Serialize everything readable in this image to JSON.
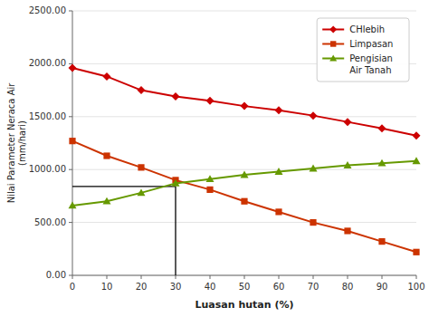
{
  "chart_data": {
    "type": "line",
    "xlabel": "Luasan hutan (%)",
    "ylabel": "Nilai Parameter Neraca Air\n(mm/hari)",
    "x": [
      0,
      10,
      20,
      30,
      40,
      50,
      60,
      70,
      80,
      90,
      100
    ],
    "series": [
      {
        "name": "CHlebih",
        "color": "#cc0000",
        "marker": "diamond",
        "values": [
          1960,
          1880,
          1750,
          1690,
          1650,
          1600,
          1560,
          1510,
          1450,
          1390,
          1320
        ]
      },
      {
        "name": "Limpasan",
        "color": "#cc3300",
        "marker": "square",
        "values": [
          1270,
          1130,
          1020,
          900,
          810,
          700,
          600,
          500,
          420,
          320,
          220
        ]
      },
      {
        "name": "Pengisian\nAir Tanah",
        "color": "#669900",
        "marker": "triangle",
        "values": [
          660,
          700,
          780,
          870,
          910,
          950,
          980,
          1010,
          1040,
          1060,
          1080
        ]
      }
    ],
    "xlim": [
      0,
      100
    ],
    "ylim": [
      0,
      2500
    ],
    "xticks": [
      0,
      10,
      20,
      30,
      40,
      50,
      60,
      70,
      80,
      90,
      100
    ],
    "yticks": [
      {
        "value": 0,
        "label": "0.00"
      },
      {
        "value": 500,
        "label": "500.00"
      },
      {
        "value": 1000,
        "label": "1000.00"
      },
      {
        "value": 1500,
        "label": "1500.00"
      },
      {
        "value": 2000,
        "label": "2000.00"
      },
      {
        "value": 2500,
        "label": "2500.00"
      }
    ],
    "hline": 840,
    "vline": 30,
    "grid": "y",
    "legend": "upper right"
  }
}
